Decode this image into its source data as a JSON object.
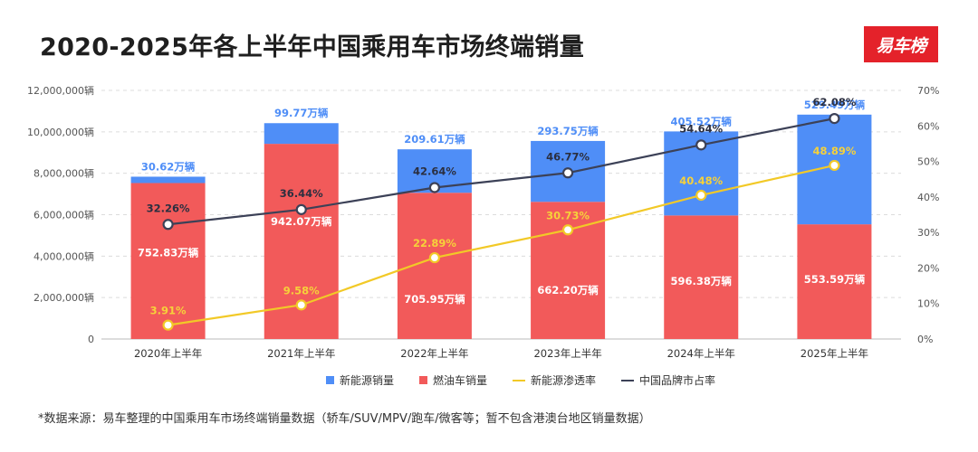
{
  "title": "2020-2025年各上半年中国乘用车市场终端销量",
  "logo_text": "易车榜",
  "footnote": "*数据来源：易车整理的中国乘用车市场终端销量数据（轿车/SUV/MPV/跑车/微客等；暂不包含港澳台地区销量数据）",
  "colors": {
    "nev": "#4f8ef7",
    "ice": "#f25a5a",
    "penetration": "#f2c927",
    "brand_share": "#3c4157"
  },
  "chart_data": {
    "type": "bar",
    "stacked": true,
    "categories": [
      "2020年上半年",
      "2021年上半年",
      "2022年上半年",
      "2023年上半年",
      "2024年上半年",
      "2025年上半年"
    ],
    "y_left_ticks": [
      "0",
      "2,000,000辆",
      "4,000,000辆",
      "6,000,000辆",
      "8,000,000辆",
      "10,000,000辆",
      "12,000,000辆"
    ],
    "y_right_ticks": [
      "0%",
      "10%",
      "20%",
      "30%",
      "40%",
      "50%",
      "60%",
      "70%"
    ],
    "ylim": [
      0,
      12000000
    ],
    "y2lim": [
      0,
      70
    ],
    "grid": true,
    "legend_position": "bottom",
    "series": [
      {
        "name": "燃油车销量",
        "kind": "bar",
        "values": [
          7528300,
          9420700,
          7059500,
          6622000,
          5963800,
          5535900
        ],
        "labels": [
          "752.83万辆",
          "942.07万辆",
          "705.95万辆",
          "662.20万辆",
          "596.38万辆",
          "553.59万辆"
        ]
      },
      {
        "name": "新能源销量",
        "kind": "bar",
        "values": [
          306200,
          997700,
          2096100,
          2937500,
          4055200,
          5294900
        ],
        "labels": [
          "30.62万辆",
          "99.77万辆",
          "209.61万辆",
          "293.75万辆",
          "405.52万辆",
          "529.49万辆"
        ]
      },
      {
        "name": "新能源渗透率",
        "kind": "line",
        "axis": "right",
        "values": [
          3.91,
          9.58,
          22.89,
          30.73,
          40.48,
          48.89
        ],
        "labels": [
          "3.91%",
          "9.58%",
          "22.89%",
          "30.73%",
          "40.48%",
          "48.89%"
        ]
      },
      {
        "name": "中国品牌市占率",
        "kind": "line",
        "axis": "right",
        "values": [
          32.26,
          36.44,
          42.64,
          46.77,
          54.64,
          62.08
        ],
        "labels": [
          "32.26%",
          "36.44%",
          "42.64%",
          "46.77%",
          "54.64%",
          "62.08%"
        ]
      }
    ],
    "legend": [
      "新能源销量",
      "燃油车销量",
      "新能源渗透率",
      "中国品牌市占率"
    ]
  }
}
